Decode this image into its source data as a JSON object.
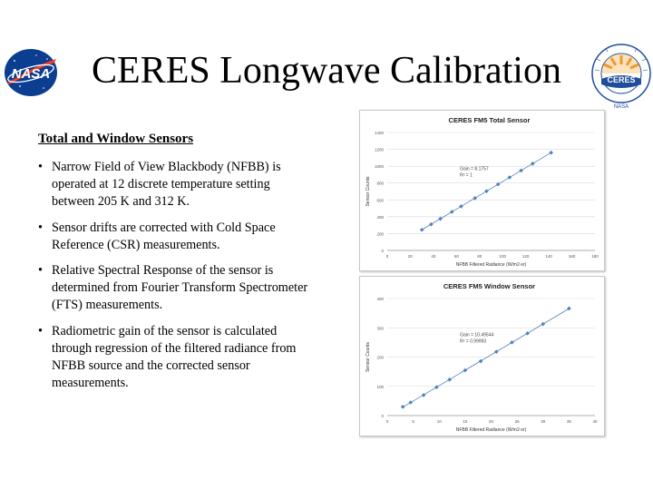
{
  "slide": {
    "title": "CERES Longwave Calibration",
    "section_heading": "Total and Window Sensors",
    "bullets": [
      "Narrow Field of View Blackbody (NFBB) is operated at 12 discrete temperature setting between 205 K and 312 K.",
      "Sensor drifts are corrected with Cold Space Reference (CSR) measurements.",
      "Relative Spectral Response of the sensor is determined from Fourier Transform Spectrometer (FTS) measurements.",
      "Radiometric gain of the sensor is calculated through regression of the filtered radiance from NFBB source and the corrected sensor measurements."
    ]
  },
  "logos": {
    "nasa_text": "NASA",
    "ceres_text": "CERES",
    "ceres_bottom_text": "NASA"
  },
  "colors": {
    "nasa_blue": "#0b3d91",
    "nasa_red": "#fc3d21",
    "ceres_ring": "#1f4e9c",
    "ceres_sun": "#f28c1e",
    "data_marker": "#4f81bd",
    "fit_line": "#4f81bd"
  },
  "chart_data": [
    {
      "type": "scatter",
      "title": "CERES FM5 Total Sensor",
      "xlabel": "NFBB Filtered Radiance (W/m2-sr)",
      "ylabel": "Sensor Counts",
      "xlim": [
        0,
        180
      ],
      "ylim": [
        0,
        1400
      ],
      "xticks": [
        0,
        20,
        40,
        60,
        80,
        100,
        120,
        140,
        160,
        180
      ],
      "yticks": [
        0,
        200,
        400,
        600,
        800,
        1000,
        1200,
        1400
      ],
      "grid": true,
      "annotation": [
        "Gain = 8.1757",
        "R² = 1"
      ],
      "x": [
        30,
        38,
        46,
        56,
        64,
        76,
        86,
        96,
        106,
        116,
        126,
        142
      ],
      "y": [
        245,
        310,
        376,
        458,
        523,
        621,
        703,
        785,
        867,
        948,
        1030,
        1161
      ]
    },
    {
      "type": "scatter",
      "title": "CERES FM5 Window Sensor",
      "xlabel": "NFBB Filtered Radiance (W/m2-sr)",
      "ylabel": "Sensor Counts",
      "xlim": [
        0,
        40
      ],
      "ylim": [
        0,
        400
      ],
      "xticks": [
        0,
        5,
        10,
        15,
        20,
        25,
        30,
        35,
        40
      ],
      "yticks": [
        0,
        100,
        200,
        300,
        400
      ],
      "grid": true,
      "annotation": [
        "Gain = 10.49544",
        "R² = 0.99993"
      ],
      "x": [
        3,
        4.5,
        7,
        9.5,
        12,
        15,
        18,
        21,
        24,
        27,
        30,
        35
      ],
      "y": [
        30,
        45,
        70,
        97,
        123,
        155,
        186,
        218,
        250,
        281,
        313,
        366
      ]
    }
  ]
}
